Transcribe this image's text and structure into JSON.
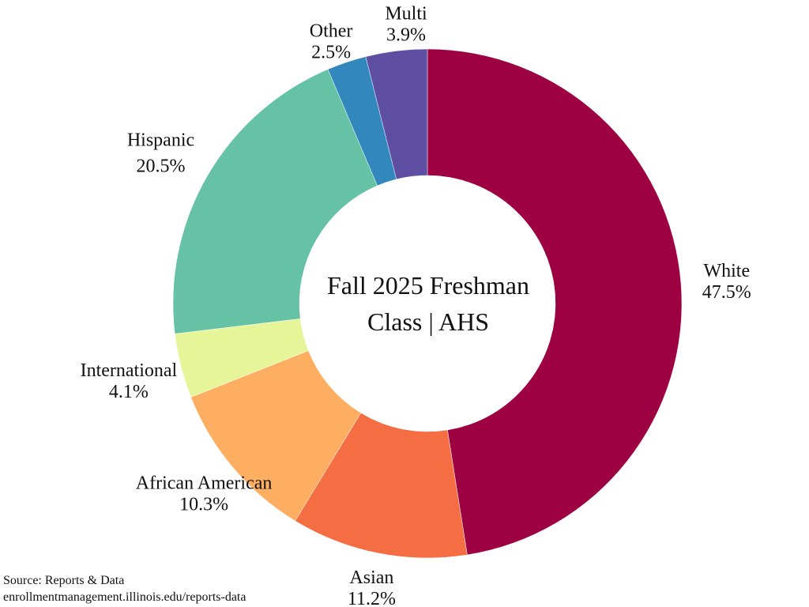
{
  "chart_data": {
    "type": "pie",
    "variant": "donut",
    "title_line1": "Fall 2025 Freshman",
    "title_line2": "Class | AHS",
    "slices": [
      {
        "label": "White",
        "value": 47.5,
        "display": "47.5%",
        "color": "#9E0142"
      },
      {
        "label": "Asian",
        "value": 11.2,
        "display": "11.2%",
        "color": "#F46D43"
      },
      {
        "label": "African American",
        "value": 10.3,
        "display": "10.3%",
        "color": "#FDAE61"
      },
      {
        "label": "International",
        "value": 4.1,
        "display": "4.1%",
        "color": "#E6F598"
      },
      {
        "label": "Hispanic",
        "value": 20.5,
        "display": "20.5%",
        "color": "#66C2A5"
      },
      {
        "label": "Other",
        "value": 2.5,
        "display": "2.5%",
        "color": "#3288BD"
      },
      {
        "label": "Multi",
        "value": 3.9,
        "display": "3.9%",
        "color": "#5E4FA2"
      }
    ],
    "start": "top",
    "direction": "clockwise"
  },
  "source": {
    "line1": "Source: Reports & Data",
    "line2": "enrollmentmanagement.illinois.edu/reports-data"
  }
}
